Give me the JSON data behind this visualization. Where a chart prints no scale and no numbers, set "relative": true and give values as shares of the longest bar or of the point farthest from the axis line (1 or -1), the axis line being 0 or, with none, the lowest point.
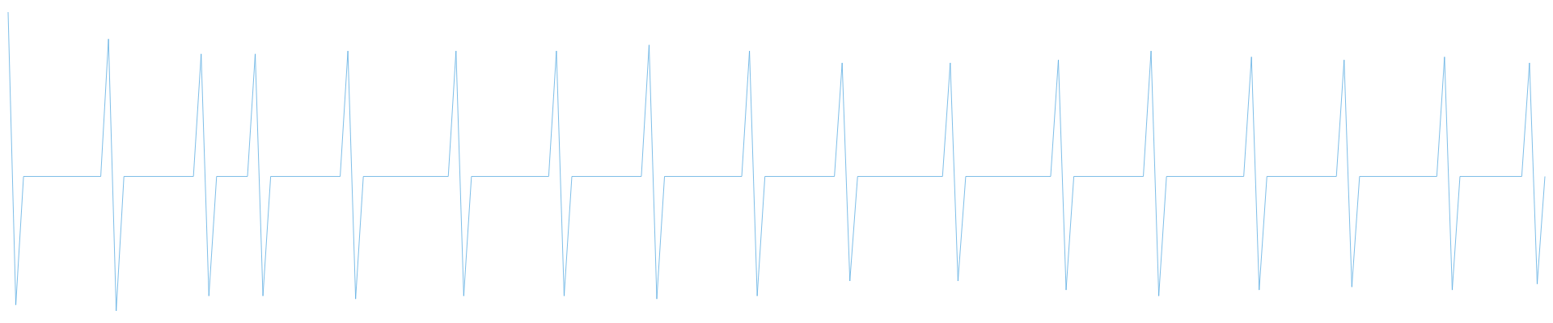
{
  "chart_data": {
    "type": "line",
    "relative": true,
    "marker": "none",
    "line_style": "solid",
    "categories": [
      null,
      null,
      null,
      null,
      null,
      null,
      null,
      null,
      null,
      null,
      null,
      null,
      null,
      null,
      null,
      null,
      null,
      null,
      null,
      null,
      null,
      null,
      null,
      null,
      null,
      null,
      null,
      null,
      null,
      null,
      null,
      null,
      null,
      null,
      null,
      null,
      null,
      null,
      null,
      null,
      null,
      null,
      null,
      null,
      null,
      null,
      null,
      null,
      null,
      null,
      null,
      null,
      null,
      null,
      null,
      null,
      null,
      null,
      null,
      null,
      null,
      null,
      null,
      null,
      null,
      null,
      null,
      null,
      null,
      null,
      null,
      null,
      null,
      null,
      null,
      null,
      null,
      null,
      null,
      null,
      null,
      null,
      null,
      null,
      null,
      null,
      null,
      null,
      null,
      null,
      null,
      null,
      null,
      null,
      null,
      null,
      null,
      null,
      null,
      null,
      null,
      null,
      null,
      null,
      null,
      null,
      null,
      null,
      null,
      null,
      null,
      null,
      null,
      null,
      null,
      null,
      null,
      null,
      null,
      null,
      null,
      null,
      null,
      null,
      null,
      null,
      null,
      null,
      null,
      null,
      null,
      null,
      null,
      null,
      null,
      null,
      null,
      null,
      null,
      null,
      null,
      null,
      null,
      null,
      null,
      null,
      null,
      null,
      null,
      null,
      null,
      null,
      null,
      null,
      null,
      null,
      null,
      null,
      null,
      null,
      null,
      null,
      null,
      null,
      null,
      null,
      null,
      null,
      null,
      null,
      null,
      null,
      null,
      null,
      null,
      null,
      null,
      null,
      null,
      null,
      null,
      null,
      null,
      null,
      null,
      null,
      null,
      null,
      null,
      null,
      null,
      null,
      null,
      null,
      null,
      null,
      null,
      null,
      null,
      null
    ],
    "series": [
      {
        "color": "#5dade2",
        "values": [
          1,
          0.02,
          0.45,
          0.45,
          0.45,
          0.45,
          0.45,
          0.45,
          0.45,
          0.45,
          0.45,
          0.45,
          0.45,
          0.91,
          0,
          0.45,
          0.45,
          0.45,
          0.45,
          0.45,
          0.45,
          0.45,
          0.45,
          0.45,
          0.45,
          0.86,
          0.05,
          0.45,
          0.45,
          0.45,
          0.45,
          0.45,
          0.86,
          0.05,
          0.45,
          0.45,
          0.45,
          0.45,
          0.45,
          0.45,
          0.45,
          0.45,
          0.45,
          0.45,
          0.87,
          0.04,
          0.45,
          0.45,
          0.45,
          0.45,
          0.45,
          0.45,
          0.45,
          0.45,
          0.45,
          0.45,
          0.45,
          0.45,
          0.87,
          0.05,
          0.45,
          0.45,
          0.45,
          0.45,
          0.45,
          0.45,
          0.45,
          0.45,
          0.45,
          0.45,
          0.45,
          0.87,
          0.05,
          0.45,
          0.45,
          0.45,
          0.45,
          0.45,
          0.45,
          0.45,
          0.45,
          0.45,
          0.45,
          0.89,
          0.04,
          0.45,
          0.45,
          0.45,
          0.45,
          0.45,
          0.45,
          0.45,
          0.45,
          0.45,
          0.45,
          0.45,
          0.87,
          0.05,
          0.45,
          0.45,
          0.45,
          0.45,
          0.45,
          0.45,
          0.45,
          0.45,
          0.45,
          0.45,
          0.83,
          0.1,
          0.45,
          0.45,
          0.45,
          0.45,
          0.45,
          0.45,
          0.45,
          0.45,
          0.45,
          0.45,
          0.45,
          0.45,
          0.83,
          0.1,
          0.45,
          0.45,
          0.45,
          0.45,
          0.45,
          0.45,
          0.45,
          0.45,
          0.45,
          0.45,
          0.45,
          0.45,
          0.84,
          0.07,
          0.45,
          0.45,
          0.45,
          0.45,
          0.45,
          0.45,
          0.45,
          0.45,
          0.45,
          0.45,
          0.87,
          0.05,
          0.45,
          0.45,
          0.45,
          0.45,
          0.45,
          0.45,
          0.45,
          0.45,
          0.45,
          0.45,
          0.45,
          0.85,
          0.07,
          0.45,
          0.45,
          0.45,
          0.45,
          0.45,
          0.45,
          0.45,
          0.45,
          0.45,
          0.45,
          0.84,
          0.08,
          0.45,
          0.45,
          0.45,
          0.45,
          0.45,
          0.45,
          0.45,
          0.45,
          0.45,
          0.45,
          0.45,
          0.85,
          0.07,
          0.45,
          0.45,
          0.45,
          0.45,
          0.45,
          0.45,
          0.45,
          0.45,
          0.45,
          0.83,
          0.09,
          0.45
        ]
      }
    ]
  }
}
